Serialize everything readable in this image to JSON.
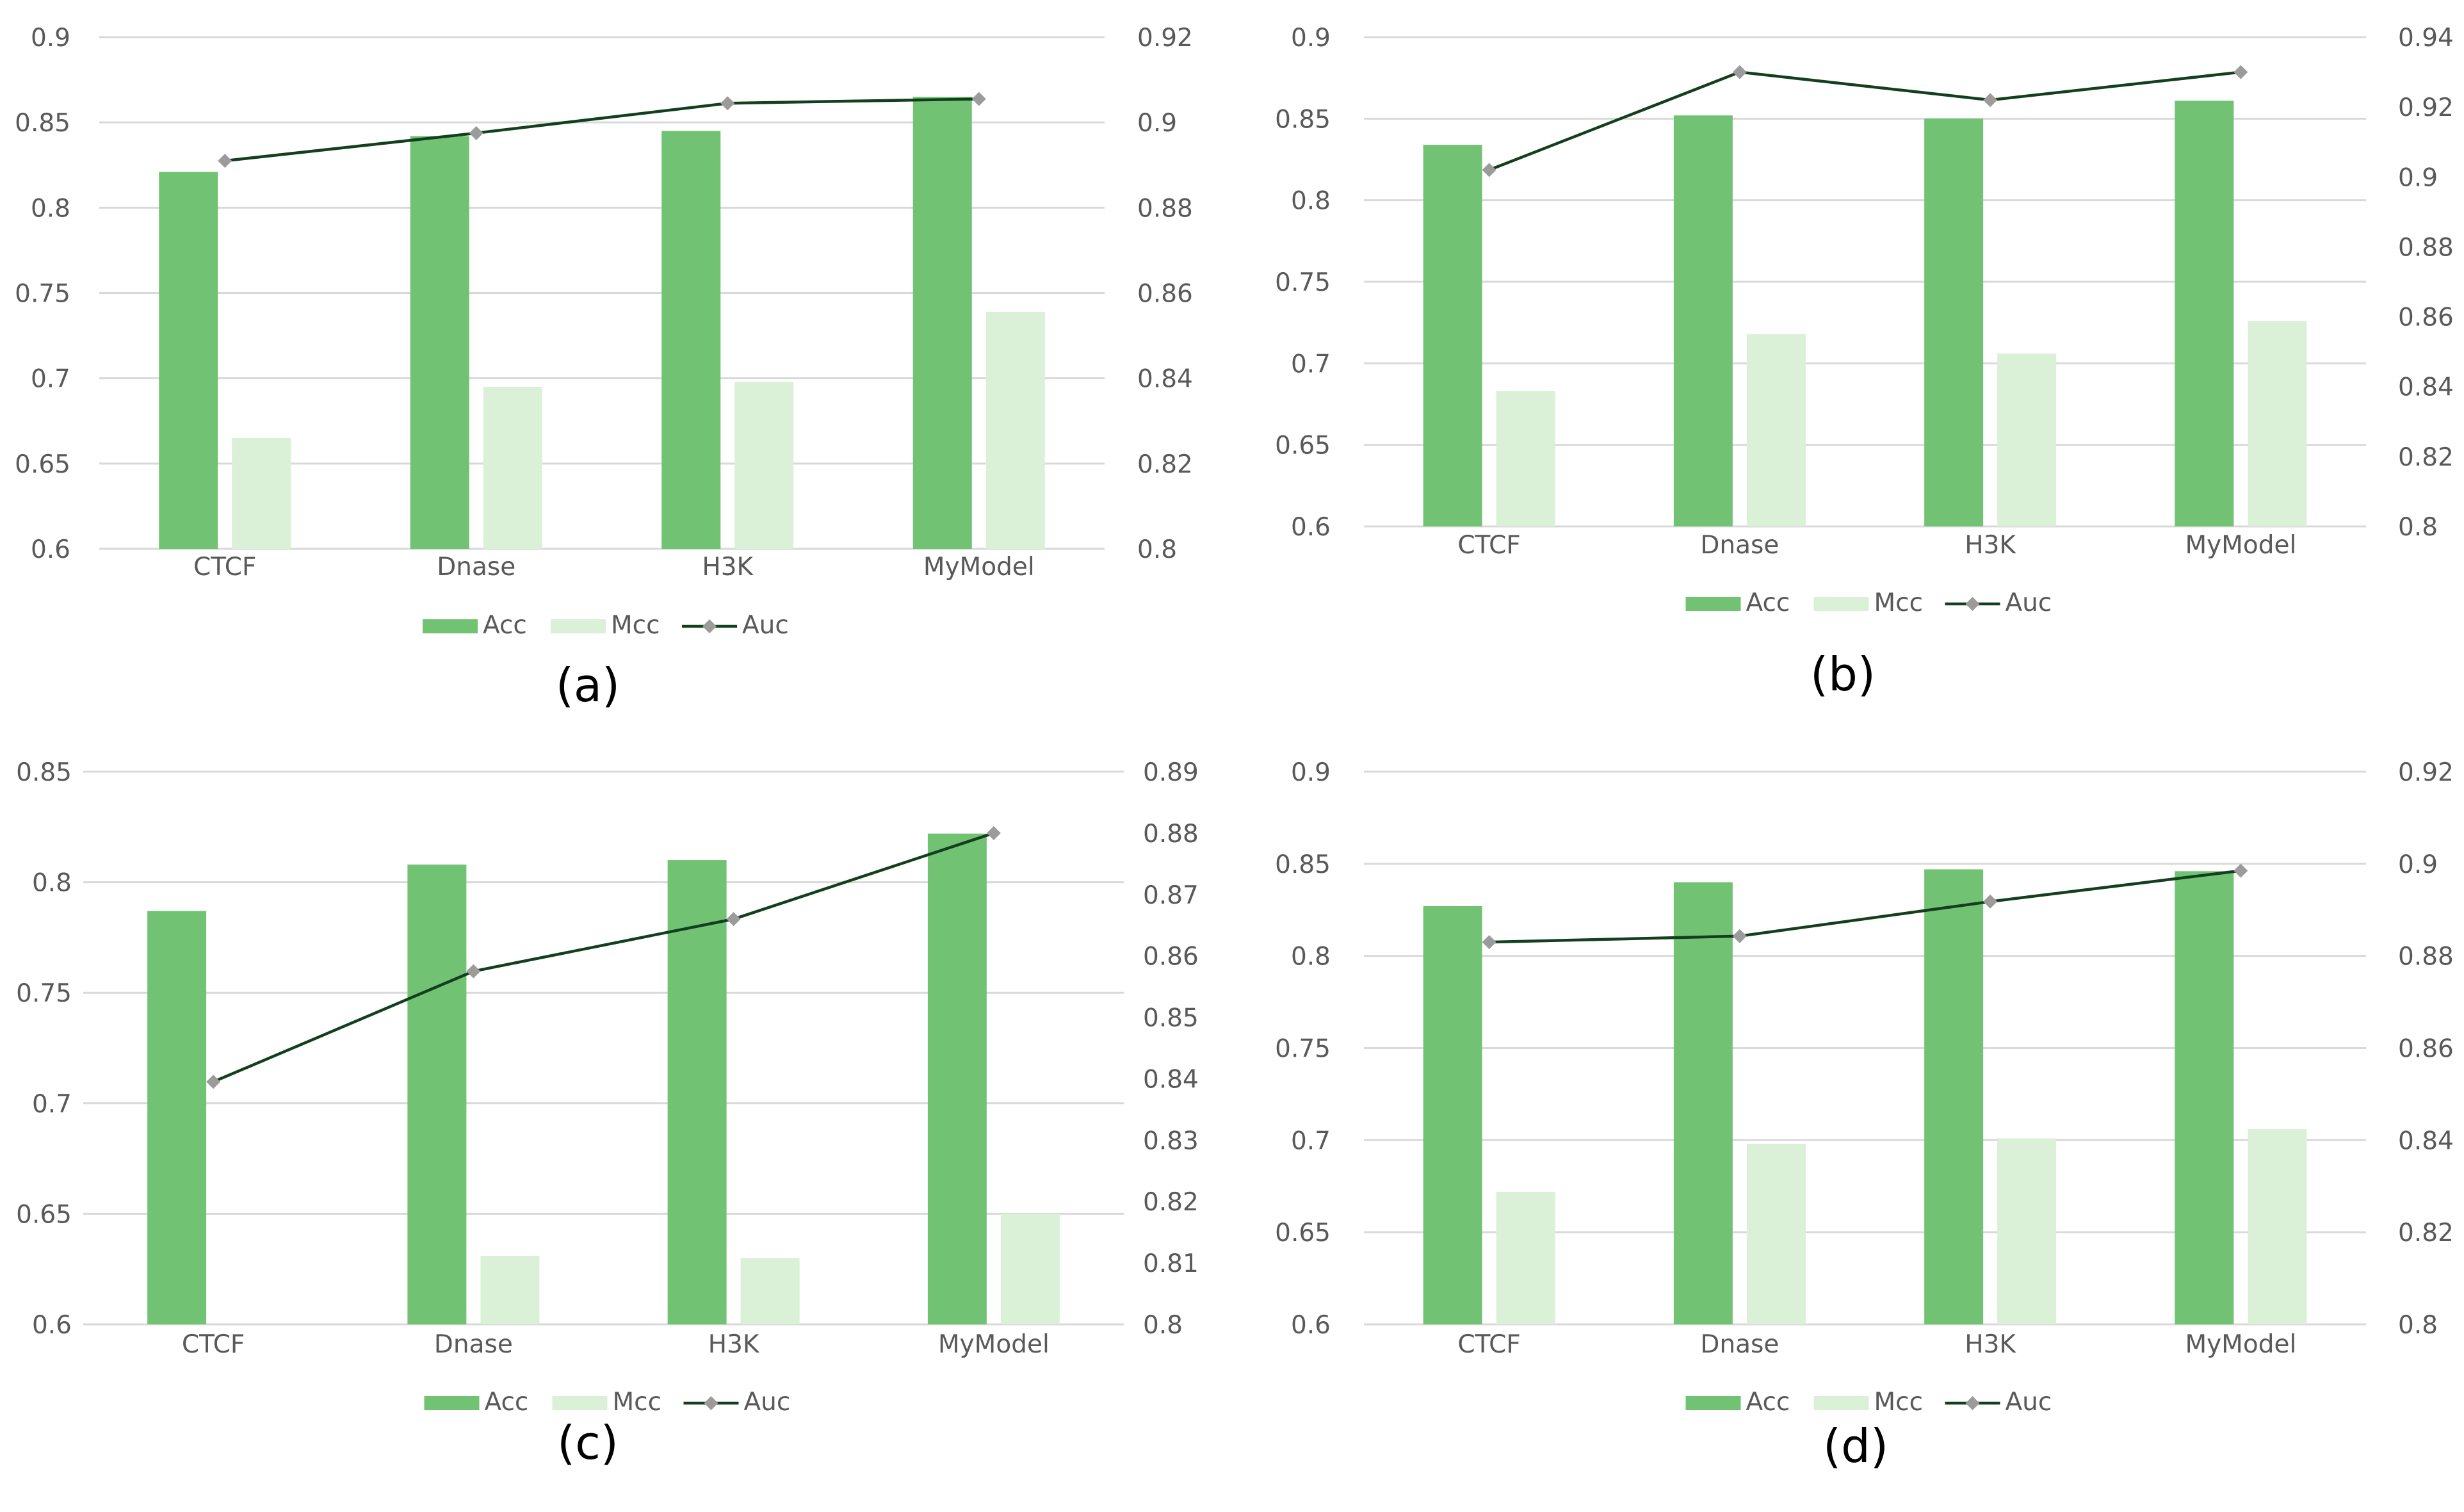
{
  "colors": {
    "acc": "#72c274",
    "mcc": "#daf0d7",
    "auc_line": "#133f1f",
    "auc_marker": "#9b9b9b"
  },
  "chart_data": [
    {
      "type": "bar",
      "caption": "(a)",
      "categories": [
        "CTCF",
        "Dnase",
        "H3K",
        "MyModel"
      ],
      "series": [
        {
          "name": "Acc",
          "axis": "left",
          "kind": "bar",
          "values": [
            0.821,
            0.842,
            0.845,
            0.865
          ]
        },
        {
          "name": "Mcc",
          "axis": "left",
          "kind": "bar",
          "values": [
            0.665,
            0.695,
            0.698,
            0.739
          ]
        },
        {
          "name": "Auc",
          "axis": "right",
          "kind": "line",
          "values": [
            0.891,
            0.8975,
            0.9045,
            0.9055
          ]
        }
      ],
      "ylim_left": [
        0.6,
        0.9
      ],
      "ylim_right": [
        0.8,
        0.92
      ],
      "left_ticks": [
        "0.6",
        "0.65",
        "0.7",
        "0.75",
        "0.8",
        "0.85",
        "0.9"
      ],
      "right_ticks": [
        "0.8",
        "0.82",
        "0.84",
        "0.86",
        "0.88",
        "0.9",
        "0.92"
      ],
      "legend": [
        "Acc",
        "Mcc",
        "Auc"
      ]
    },
    {
      "type": "bar",
      "caption": "(b)",
      "categories": [
        "CTCF",
        "Dnase",
        "H3K",
        "MyModel"
      ],
      "series": [
        {
          "name": "Acc",
          "axis": "left",
          "kind": "bar",
          "values": [
            0.834,
            0.852,
            0.85,
            0.861
          ]
        },
        {
          "name": "Mcc",
          "axis": "left",
          "kind": "bar",
          "values": [
            0.683,
            0.718,
            0.706,
            0.726
          ]
        },
        {
          "name": "Auc",
          "axis": "right",
          "kind": "line",
          "values": [
            0.902,
            0.93,
            0.922,
            0.93
          ]
        }
      ],
      "ylim_left": [
        0.6,
        0.9
      ],
      "ylim_right": [
        0.8,
        0.94
      ],
      "left_ticks": [
        "0.6",
        "0.65",
        "0.7",
        "0.75",
        "0.8",
        "0.85",
        "0.9"
      ],
      "right_ticks": [
        "0.8",
        "0.82",
        "0.84",
        "0.86",
        "0.88",
        "0.9",
        "0.92",
        "0.94"
      ],
      "legend": [
        "Acc",
        "Mcc",
        "Auc"
      ]
    },
    {
      "type": "bar",
      "caption": "(c)",
      "categories": [
        "CTCF",
        "Dnase",
        "H3K",
        "MyModel"
      ],
      "series": [
        {
          "name": "Acc",
          "axis": "left",
          "kind": "bar",
          "values": [
            0.787,
            0.808,
            0.81,
            0.822
          ]
        },
        {
          "name": "Mcc",
          "axis": "left",
          "kind": "bar",
          "values": [
            0.6,
            0.631,
            0.63,
            0.65
          ]
        },
        {
          "name": "Auc",
          "axis": "right",
          "kind": "line",
          "values": [
            0.8395,
            0.8575,
            0.866,
            0.88
          ]
        }
      ],
      "ylim_left": [
        0.6,
        0.85
      ],
      "ylim_right": [
        0.8,
        0.89
      ],
      "left_ticks": [
        "0.6",
        "0.65",
        "0.7",
        "0.75",
        "0.8",
        "0.85"
      ],
      "right_ticks": [
        "0.8",
        "0.81",
        "0.82",
        "0.83",
        "0.84",
        "0.85",
        "0.86",
        "0.87",
        "0.88",
        "0.89"
      ],
      "legend": [
        "Acc",
        "Mcc",
        "Auc"
      ]
    },
    {
      "type": "bar",
      "caption": "(d)",
      "categories": [
        "CTCF",
        "Dnase",
        "H3K",
        "MyModel"
      ],
      "series": [
        {
          "name": "Acc",
          "axis": "left",
          "kind": "bar",
          "values": [
            0.827,
            0.84,
            0.847,
            0.846
          ]
        },
        {
          "name": "Mcc",
          "axis": "left",
          "kind": "bar",
          "values": [
            0.672,
            0.698,
            0.701,
            0.706
          ]
        },
        {
          "name": "Auc",
          "axis": "right",
          "kind": "line",
          "values": [
            0.883,
            0.8843,
            0.8918,
            0.8985
          ]
        }
      ],
      "ylim_left": [
        0.6,
        0.9
      ],
      "ylim_right": [
        0.8,
        0.92
      ],
      "left_ticks": [
        "0.6",
        "0.65",
        "0.7",
        "0.75",
        "0.8",
        "0.85",
        "0.9"
      ],
      "right_ticks": [
        "0.8",
        "0.82",
        "0.84",
        "0.86",
        "0.88",
        "0.9",
        "0.92"
      ],
      "legend": [
        "Acc",
        "Mcc",
        "Auc"
      ]
    }
  ]
}
